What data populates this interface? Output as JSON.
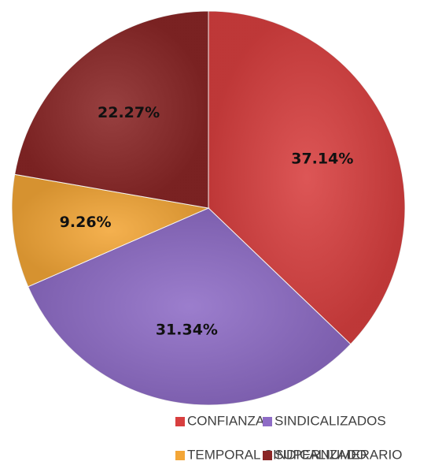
{
  "chart_data": {
    "type": "pie",
    "categories": [
      "CONFIANZA",
      "SINDICALIZADOS",
      "TEMPORAL SINDICALIZADO",
      "SUPERNUMERARIO"
    ],
    "values": [
      37.14,
      31.34,
      9.26,
      22.27
    ],
    "value_labels": [
      "37.14%",
      "31.34%",
      "9.26%",
      "22.27%"
    ],
    "colors": [
      "#d83f3f",
      "#8e6cc6",
      "#f3a637",
      "#8a2626"
    ],
    "legend": "bottom"
  }
}
